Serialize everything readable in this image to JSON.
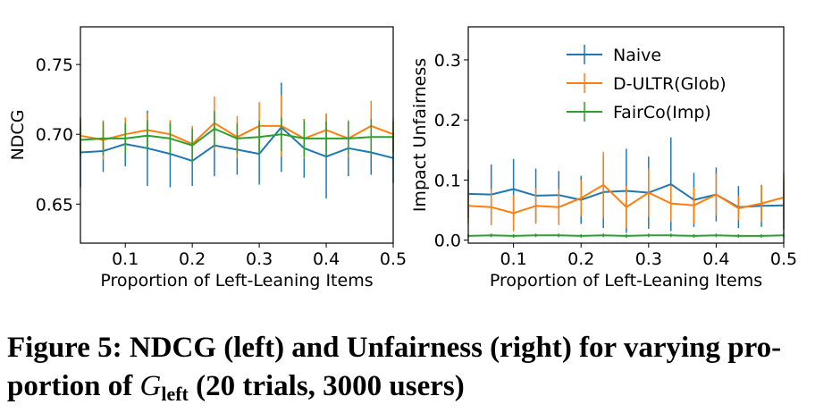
{
  "figure": {
    "caption_head": "Figure 5: NDCG (left) and Unfairness (right) for varying pro-",
    "caption_tail_pre": "portion of ",
    "caption_symbol": "G",
    "caption_subscript": "left",
    "caption_tail_post": " (20 trials, 3000 users)"
  },
  "colors": {
    "naive": "#1f77b4",
    "dultr": "#ff7f0e",
    "fairco": "#2ca02c"
  },
  "chart_data": [
    {
      "type": "line",
      "title": "",
      "xlabel": "Proportion of Left-Leaning Items",
      "ylabel": "NDCG",
      "xlim": [
        0.033,
        0.5
      ],
      "ylim": [
        0.622,
        0.777
      ],
      "xticks": [
        0.1,
        0.2,
        0.3,
        0.4,
        0.5
      ],
      "xtick_labels": [
        "0.1",
        "0.2",
        "0.3",
        "0.4",
        "0.5"
      ],
      "yticks": [
        0.65,
        0.7,
        0.75
      ],
      "ytick_labels": [
        "0.65",
        "0.70",
        "0.75"
      ],
      "grid": false,
      "legend": false,
      "x": [
        0.033,
        0.067,
        0.1,
        0.133,
        0.167,
        0.2,
        0.233,
        0.267,
        0.3,
        0.333,
        0.367,
        0.4,
        0.433,
        0.467,
        0.5
      ],
      "series": [
        {
          "name": "Naive",
          "color_key": "naive",
          "values": [
            0.687,
            0.688,
            0.693,
            0.69,
            0.686,
            0.681,
            0.692,
            0.689,
            0.686,
            0.705,
            0.69,
            0.684,
            0.69,
            0.687,
            0.683
          ],
          "errors": [
            0.025,
            0.015,
            0.016,
            0.027,
            0.024,
            0.018,
            0.022,
            0.018,
            0.022,
            0.032,
            0.021,
            0.03,
            0.02,
            0.016,
            0.018
          ]
        },
        {
          "name": "D-ULTR(Glob)",
          "color_key": "dultr",
          "values": [
            0.699,
            0.696,
            0.7,
            0.703,
            0.7,
            0.693,
            0.708,
            0.698,
            0.706,
            0.706,
            0.697,
            0.703,
            0.697,
            0.706,
            0.7
          ],
          "errors": [
            0.012,
            0.014,
            0.012,
            0.012,
            0.01,
            0.013,
            0.019,
            0.015,
            0.017,
            0.022,
            0.014,
            0.012,
            0.013,
            0.018,
            0.012
          ]
        },
        {
          "name": "FairCo(Imp)",
          "color_key": "fairco",
          "values": [
            0.696,
            0.697,
            0.697,
            0.699,
            0.697,
            0.692,
            0.704,
            0.697,
            0.698,
            0.7,
            0.697,
            0.697,
            0.697,
            0.698,
            0.698
          ],
          "errors": [
            0.011,
            0.012,
            0.011,
            0.011,
            0.011,
            0.012,
            0.013,
            0.011,
            0.012,
            0.012,
            0.013,
            0.012,
            0.012,
            0.013,
            0.011
          ]
        }
      ]
    },
    {
      "type": "line",
      "title": "",
      "xlabel": "Proportion of Left-Leaning Items",
      "ylabel": "Impact Unfairness",
      "xlim": [
        0.033,
        0.5
      ],
      "ylim": [
        -0.005,
        0.355
      ],
      "xticks": [
        0.1,
        0.2,
        0.3,
        0.4,
        0.5
      ],
      "xtick_labels": [
        "0.1",
        "0.2",
        "0.3",
        "0.4",
        "0.5"
      ],
      "yticks": [
        0.0,
        0.1,
        0.2,
        0.3
      ],
      "ytick_labels": [
        "0.0",
        "0.1",
        "0.2",
        "0.3"
      ],
      "grid": false,
      "legend": true,
      "legend_position": "top-right",
      "x": [
        0.033,
        0.067,
        0.1,
        0.133,
        0.167,
        0.2,
        0.233,
        0.267,
        0.3,
        0.333,
        0.367,
        0.4,
        0.433,
        0.467,
        0.5
      ],
      "series": [
        {
          "name": "Naive",
          "color_key": "naive",
          "values": [
            0.077,
            0.076,
            0.085,
            0.074,
            0.075,
            0.067,
            0.08,
            0.082,
            0.079,
            0.093,
            0.067,
            0.076,
            0.055,
            0.057,
            0.058
          ],
          "errors": [
            0.04,
            0.05,
            0.05,
            0.045,
            0.04,
            0.04,
            0.06,
            0.07,
            0.06,
            0.078,
            0.045,
            0.045,
            0.035,
            0.035,
            0.04
          ]
        },
        {
          "name": "D-ULTR(Glob)",
          "color_key": "dultr",
          "values": [
            0.057,
            0.055,
            0.045,
            0.057,
            0.055,
            0.07,
            0.092,
            0.055,
            0.079,
            0.061,
            0.058,
            0.076,
            0.053,
            0.061,
            0.071
          ],
          "errors": [
            0.03,
            0.03,
            0.03,
            0.03,
            0.03,
            0.03,
            0.055,
            0.035,
            0.04,
            0.03,
            0.03,
            0.035,
            0.02,
            0.03,
            0.04
          ]
        },
        {
          "name": "FairCo(Imp)",
          "color_key": "fairco",
          "values": [
            0.007,
            0.008,
            0.007,
            0.008,
            0.008,
            0.007,
            0.008,
            0.007,
            0.008,
            0.008,
            0.007,
            0.008,
            0.007,
            0.007,
            0.008
          ],
          "errors": [
            0.003,
            0.003,
            0.003,
            0.003,
            0.003,
            0.003,
            0.003,
            0.003,
            0.003,
            0.003,
            0.003,
            0.003,
            0.003,
            0.003,
            0.003
          ]
        }
      ]
    }
  ]
}
